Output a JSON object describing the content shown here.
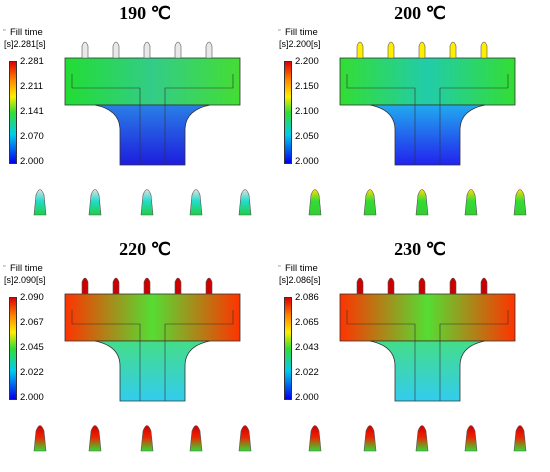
{
  "panels": [
    {
      "title": "190 ℃",
      "legend": {
        "title": "Fill time",
        "max_label": "[s]2.281[s]",
        "ticks": [
          "2.281",
          "2.211",
          "2.141",
          "2.070",
          "2.000"
        ]
      },
      "colors": {
        "top_left": "#22dd33",
        "top_mid": "#33cc88",
        "top_right": "#44dd33",
        "stem": "#1d1ddd",
        "stem_top": "#2a7fe6",
        "gate": "#22ddcc",
        "gate_tip": "#e0e0e0",
        "gate_base": "#22cc44",
        "runner_tip": "#e8e8e8"
      }
    },
    {
      "title": "200 ℃",
      "legend": {
        "title": "Fill time",
        "max_label": "[s]2.200[s]",
        "ticks": [
          "2.200",
          "2.150",
          "2.100",
          "2.050",
          "2.000"
        ]
      },
      "colors": {
        "top_left": "#33dd33",
        "top_mid": "#22ccaa",
        "top_right": "#33dd33",
        "stem": "#2222ee",
        "stem_top": "#22aaee",
        "gate": "#33dd33",
        "gate_tip": "#ffdd00",
        "gate_base": "#33cc33",
        "runner_tip": "#ffee00"
      }
    },
    {
      "title": "220 ℃",
      "legend": {
        "title": "Fill time",
        "max_label": "[s]2.090[s]",
        "ticks": [
          "2.090",
          "2.067",
          "2.045",
          "2.022",
          "2.000"
        ]
      },
      "colors": {
        "top_left": "#ff3300",
        "top_mid": "#55dd33",
        "top_right": "#ff3300",
        "stem": "#33ccee",
        "stem_top": "#44dd88",
        "gate": "#ee2200",
        "gate_tip": "#cc0000",
        "gate_base": "#33dd33",
        "runner_tip": "#cc0000"
      }
    },
    {
      "title": "230 ℃",
      "legend": {
        "title": "Fill time",
        "max_label": "[s]2.086[s]",
        "ticks": [
          "2.086",
          "2.065",
          "2.043",
          "2.022",
          "2.000"
        ]
      },
      "colors": {
        "top_left": "#ff3300",
        "top_mid": "#55dd33",
        "top_right": "#ff3300",
        "stem": "#33ccee",
        "stem_top": "#44dd88",
        "gate": "#ee2200",
        "gate_tip": "#cc0000",
        "gate_base": "#33dd33",
        "runner_tip": "#cc0000"
      }
    }
  ]
}
